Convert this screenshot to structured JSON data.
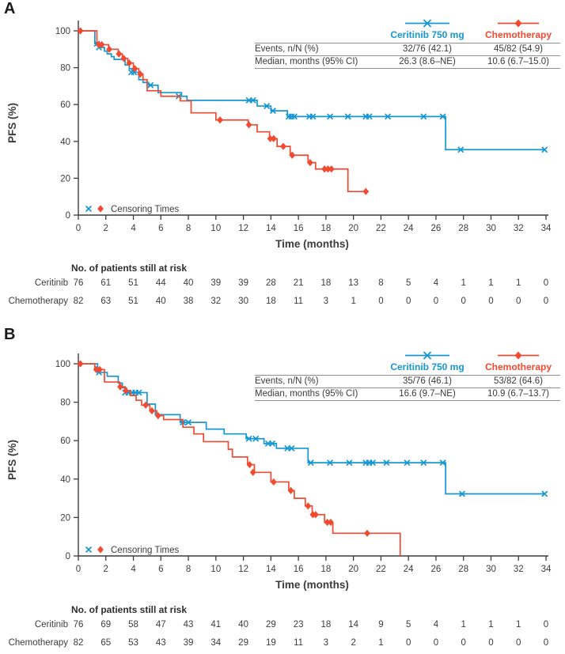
{
  "colors": {
    "ceritinib": "#1697D4",
    "chemotherapy": "#F24A30",
    "text": "#3a3a3a",
    "rule": "#8f8f8f",
    "axis": "#3c3c3c"
  },
  "chart_data": [
    {
      "type": "line",
      "subtype": "kaplan-meier-step",
      "panel_label": "A",
      "xlabel": "Time (months)",
      "ylabel": "PFS (%)",
      "xlim": [
        0,
        34
      ],
      "ylim": [
        0,
        100
      ],
      "xticks": [
        0,
        2,
        4,
        6,
        8,
        10,
        12,
        14,
        16,
        18,
        20,
        22,
        24,
        26,
        28,
        30,
        32,
        34
      ],
      "yticks": [
        0,
        20,
        40,
        60,
        80,
        100
      ],
      "grid": false,
      "legend_position": "inset table top-right",
      "censor_legend": "Censoring Times",
      "stats_rows": [
        "Events, n/N (%)",
        "Median, months (95% CI)"
      ],
      "series": [
        {
          "name": "Ceritinib 750 mg",
          "color": "#1697D4",
          "marker": "x",
          "events_label": "32/76 (42.1)",
          "median_label": "26.3 (8.6–NE)",
          "steps": [
            [
              0,
              100
            ],
            [
              1.2,
              93
            ],
            [
              1.6,
              91
            ],
            [
              1.9,
              89
            ],
            [
              2.1,
              87.5
            ],
            [
              2.4,
              86
            ],
            [
              2.6,
              84.5
            ],
            [
              3.4,
              81.5
            ],
            [
              3.7,
              79.5
            ],
            [
              4.0,
              77.5
            ],
            [
              4.4,
              73.5
            ],
            [
              4.7,
              72
            ],
            [
              5.1,
              70.5
            ],
            [
              5.8,
              66.5
            ],
            [
              7.5,
              64.5
            ],
            [
              7.9,
              62.3
            ],
            [
              13.0,
              59.2
            ],
            [
              14.0,
              56.6
            ],
            [
              15.2,
              53.5
            ],
            [
              26.7,
              35.5
            ]
          ],
          "end_x": 33.9,
          "censors": [
            [
              1.35,
              93
            ],
            [
              1.5,
              91
            ],
            [
              3.85,
              77.5
            ],
            [
              4.05,
              77.5
            ],
            [
              5.25,
              70.5
            ],
            [
              7.3,
              64.5
            ],
            [
              12.4,
              62.3
            ],
            [
              12.7,
              62.3
            ],
            [
              13.7,
              59.2
            ],
            [
              14.15,
              56.6
            ],
            [
              15.3,
              53.5
            ],
            [
              15.5,
              53.5
            ],
            [
              15.7,
              53.5
            ],
            [
              16.8,
              53.5
            ],
            [
              17.05,
              53.5
            ],
            [
              18.3,
              53.5
            ],
            [
              19.6,
              53.5
            ],
            [
              20.9,
              53.5
            ],
            [
              21.15,
              53.5
            ],
            [
              22.5,
              53.5
            ],
            [
              25.1,
              53.5
            ],
            [
              26.5,
              53.5
            ],
            [
              27.8,
              35.5
            ],
            [
              33.9,
              35.5
            ]
          ]
        },
        {
          "name": "Chemotherapy",
          "color": "#F24A30",
          "marker": "diamond",
          "events_label": "45/82 (54.9)",
          "median_label": "10.6 (6.7–15.0)",
          "steps": [
            [
              0,
              100
            ],
            [
              1.35,
              92.5
            ],
            [
              2.2,
              90
            ],
            [
              2.9,
              87.5
            ],
            [
              3.2,
              85
            ],
            [
              3.6,
              82.5
            ],
            [
              4.0,
              79.5
            ],
            [
              4.4,
              76.5
            ],
            [
              4.7,
              73.5
            ],
            [
              5.0,
              67.5
            ],
            [
              6.0,
              64.5
            ],
            [
              7.4,
              62
            ],
            [
              8.2,
              55.5
            ],
            [
              10.0,
              51.6
            ],
            [
              12.35,
              49
            ],
            [
              13.0,
              45.2
            ],
            [
              13.9,
              41.5
            ],
            [
              14.45,
              37.3
            ],
            [
              15.4,
              32.5
            ],
            [
              16.7,
              28.5
            ],
            [
              17.25,
              25
            ],
            [
              19.6,
              12.8
            ]
          ],
          "end_x": 21.0,
          "censors": [
            [
              0.15,
              100
            ],
            [
              1.5,
              92.5
            ],
            [
              1.7,
              92.5
            ],
            [
              2.25,
              90
            ],
            [
              2.95,
              87.5
            ],
            [
              3.3,
              85
            ],
            [
              3.7,
              82.5
            ],
            [
              4.1,
              79.5
            ],
            [
              4.5,
              76.5
            ],
            [
              10.3,
              51.6
            ],
            [
              12.4,
              49
            ],
            [
              13.95,
              41.5
            ],
            [
              14.2,
              41.5
            ],
            [
              14.9,
              37.3
            ],
            [
              15.55,
              32.5
            ],
            [
              16.85,
              28.5
            ],
            [
              17.9,
              25
            ],
            [
              18.15,
              25
            ],
            [
              18.4,
              25
            ],
            [
              20.9,
              12.8
            ]
          ]
        }
      ],
      "risk_table": {
        "title": "No. of patients still at risk",
        "rows": [
          {
            "label": "Ceritinib",
            "values": [
              76,
              61,
              51,
              44,
              40,
              39,
              39,
              28,
              21,
              18,
              13,
              8,
              5,
              4,
              1,
              1,
              1,
              0
            ]
          },
          {
            "label": "Chemotherapy",
            "values": [
              82,
              63,
              51,
              40,
              38,
              32,
              30,
              18,
              11,
              3,
              1,
              0,
              0,
              0,
              0,
              0,
              0,
              0
            ]
          }
        ]
      }
    },
    {
      "type": "line",
      "subtype": "kaplan-meier-step",
      "panel_label": "B",
      "xlabel": "Time (months)",
      "ylabel": "PFS (%)",
      "xlim": [
        0,
        34
      ],
      "ylim": [
        0,
        100
      ],
      "xticks": [
        0,
        2,
        4,
        6,
        8,
        10,
        12,
        14,
        16,
        18,
        20,
        22,
        24,
        26,
        28,
        30,
        32,
        34
      ],
      "yticks": [
        0,
        20,
        40,
        60,
        80,
        100
      ],
      "grid": false,
      "legend_position": "inset table top-right",
      "censor_legend": "Censoring Times",
      "stats_rows": [
        "Events, n/N (%)",
        "Median, months (95% CI)"
      ],
      "series": [
        {
          "name": "Ceritinib 750 mg",
          "color": "#1697D4",
          "marker": "x",
          "events_label": "35/76 (46.1)",
          "median_label": "16.6 (9.7–NE)",
          "steps": [
            [
              0,
              100
            ],
            [
              1.4,
              95.5
            ],
            [
              2.1,
              93.5
            ],
            [
              2.9,
              90
            ],
            [
              3.2,
              87.5
            ],
            [
              3.5,
              85
            ],
            [
              5.0,
              79
            ],
            [
              5.6,
              73.5
            ],
            [
              7.4,
              69.5
            ],
            [
              9.3,
              66
            ],
            [
              10.6,
              63.5
            ],
            [
              12.2,
              61
            ],
            [
              13.5,
              58.5
            ],
            [
              14.4,
              56
            ],
            [
              16.7,
              48.5
            ],
            [
              26.7,
              32.3
            ]
          ],
          "end_x": 33.9,
          "censors": [
            [
              1.5,
              95.5
            ],
            [
              3.4,
              85
            ],
            [
              3.65,
              85
            ],
            [
              3.9,
              85
            ],
            [
              4.15,
              85
            ],
            [
              4.4,
              85
            ],
            [
              7.6,
              69.5
            ],
            [
              8.0,
              69.5
            ],
            [
              12.4,
              61
            ],
            [
              12.9,
              61
            ],
            [
              13.8,
              58.5
            ],
            [
              14.1,
              58.5
            ],
            [
              15.2,
              56
            ],
            [
              15.5,
              56
            ],
            [
              16.9,
              48.5
            ],
            [
              18.3,
              48.5
            ],
            [
              19.7,
              48.5
            ],
            [
              20.9,
              48.5
            ],
            [
              21.15,
              48.5
            ],
            [
              21.4,
              48.5
            ],
            [
              22.4,
              48.5
            ],
            [
              23.9,
              48.5
            ],
            [
              25.1,
              48.5
            ],
            [
              26.5,
              48.5
            ],
            [
              27.9,
              32.3
            ],
            [
              33.9,
              32.3
            ]
          ]
        },
        {
          "name": "Chemotherapy",
          "color": "#F24A30",
          "marker": "diamond",
          "events_label": "53/82 (64.6)",
          "median_label": "10.9 (6.7–13.7)",
          "steps": [
            [
              0,
              100
            ],
            [
              1.2,
              97
            ],
            [
              1.9,
              90.5
            ],
            [
              3.0,
              88
            ],
            [
              3.4,
              86
            ],
            [
              3.8,
              83.5
            ],
            [
              4.2,
              81
            ],
            [
              4.6,
              78.5
            ],
            [
              5.2,
              75.5
            ],
            [
              5.7,
              73
            ],
            [
              6.2,
              71
            ],
            [
              7.6,
              67
            ],
            [
              8.4,
              63.5
            ],
            [
              9.1,
              59.5
            ],
            [
              10.9,
              55.5
            ],
            [
              11.2,
              51.5
            ],
            [
              12.3,
              47.5
            ],
            [
              12.8,
              43.5
            ],
            [
              14.0,
              38.5
            ],
            [
              15.3,
              34
            ],
            [
              15.7,
              30
            ],
            [
              16.5,
              26
            ],
            [
              17.0,
              21.5
            ],
            [
              17.9,
              17.5
            ],
            [
              18.5,
              11.8
            ],
            [
              23.4,
              0
            ]
          ],
          "end_x": 23.4,
          "censors": [
            [
              0.15,
              100
            ],
            [
              1.3,
              97
            ],
            [
              1.55,
              97
            ],
            [
              3.05,
              88
            ],
            [
              3.45,
              86
            ],
            [
              4.9,
              78.5
            ],
            [
              5.35,
              75.5
            ],
            [
              5.8,
              73
            ],
            [
              12.45,
              47.5
            ],
            [
              12.7,
              43.5
            ],
            [
              14.2,
              38.5
            ],
            [
              15.45,
              34
            ],
            [
              16.7,
              26
            ],
            [
              17.05,
              21.5
            ],
            [
              17.25,
              21.5
            ],
            [
              18.1,
              17.5
            ],
            [
              18.35,
              17.5
            ],
            [
              21.0,
              11.8
            ]
          ]
        }
      ],
      "risk_table": {
        "title": "No. of patients still at risk",
        "rows": [
          {
            "label": "Ceritinib",
            "values": [
              76,
              69,
              58,
              47,
              43,
              41,
              40,
              29,
              23,
              18,
              14,
              9,
              5,
              4,
              1,
              1,
              1,
              0
            ]
          },
          {
            "label": "Chemotherapy",
            "values": [
              82,
              65,
              53,
              43,
              39,
              34,
              29,
              19,
              11,
              3,
              2,
              1,
              0,
              0,
              0,
              0,
              0,
              0
            ]
          }
        ]
      }
    }
  ]
}
